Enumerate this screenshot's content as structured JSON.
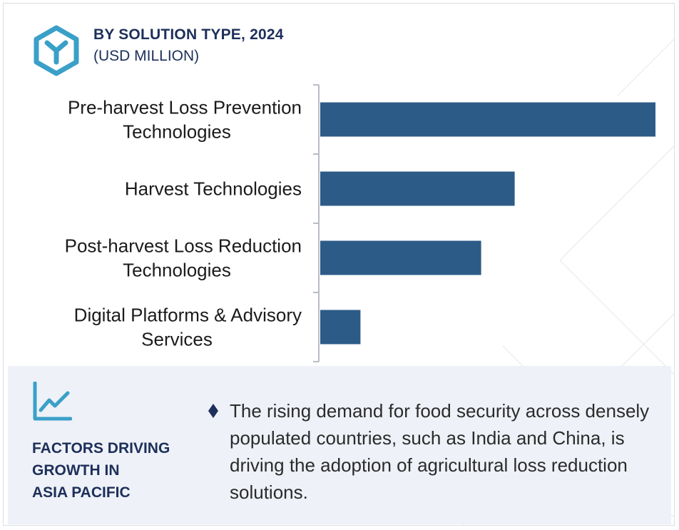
{
  "header": {
    "title": "BY SOLUTION TYPE, 2024",
    "subtitle": "(USD MILLION)",
    "logo_icon": "hexagon-y-logo-icon"
  },
  "colors": {
    "bar": "#2d5b88",
    "accent": "#3aa0c8",
    "title": "#1d2f5a",
    "panel_bg": "#eef1f7"
  },
  "chart_data": {
    "type": "bar",
    "orientation": "horizontal",
    "title": "BY SOLUTION TYPE, 2024",
    "subtitle": "(USD MILLION)",
    "categories": [
      [
        "Pre-harvest Loss Prevention",
        "Technologies"
      ],
      [
        "Harvest Technologies"
      ],
      [
        "Post-harvest Loss Reduction",
        "Technologies"
      ],
      [
        "Digital Platforms & Advisory",
        "Services"
      ]
    ],
    "values": [
      100,
      58,
      48,
      12
    ],
    "xlim": [
      0,
      100
    ],
    "grid": false,
    "legend": "none"
  },
  "factors": {
    "icon": "trend-chart-icon",
    "title_lines": [
      "FACTORS DRIVING",
      "GROWTH IN",
      "ASIA PACIFIC"
    ],
    "bullet_icon": "diamond-bullet-icon",
    "text": "The rising demand for food security across densely populated countries, such as India and China, is driving the adoption of agricultural loss reduction solutions."
  }
}
